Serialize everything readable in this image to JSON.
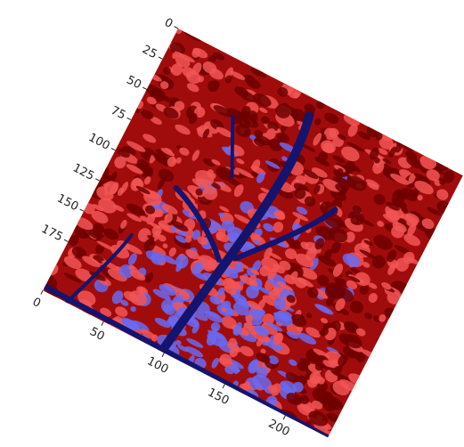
{
  "chart_data": {
    "type": "image",
    "xlim": [
      0,
      235
    ],
    "ylim": [
      0,
      215
    ],
    "y_inverted": true,
    "xticks": [
      0,
      50,
      100,
      150,
      200
    ],
    "yticks": [
      0,
      25,
      50,
      75,
      100,
      125,
      150,
      175
    ]
  }
}
